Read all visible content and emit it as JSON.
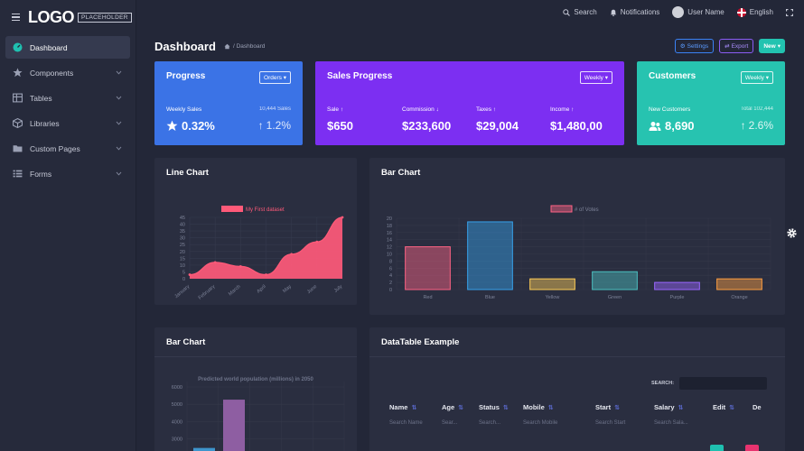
{
  "logo": {
    "text": "LOGO",
    "badge": "PLACEHOLDER"
  },
  "sidebar": {
    "items": [
      {
        "label": "Dashboard",
        "icon": "dashboard-icon",
        "active": true
      },
      {
        "label": "Components",
        "icon": "star-icon"
      },
      {
        "label": "Tables",
        "icon": "table-icon"
      },
      {
        "label": "Libraries",
        "icon": "cube-icon"
      },
      {
        "label": "Custom Pages",
        "icon": "folder-icon"
      },
      {
        "label": "Forms",
        "icon": "list-icon"
      }
    ]
  },
  "topbar": {
    "search": "Search",
    "notifications": "Notifications",
    "user": "User Name",
    "language": "English"
  },
  "header": {
    "title": "Dashboard",
    "breadcrumb": "/ Dashboard",
    "settings_label": "Settings",
    "export_label": "Export",
    "new_label": "New"
  },
  "cards": {
    "progress": {
      "title": "Progress",
      "dropdown": "Orders",
      "label": "Weekly Sales",
      "label_right": "10,444 Sales",
      "value": "0.32%",
      "value_right": "1.2%"
    },
    "sales": {
      "title": "Sales Progress",
      "dropdown": "Weekly",
      "items": [
        {
          "label": "Sale",
          "value": "$650"
        },
        {
          "label": "Commission",
          "value": "$233,600"
        },
        {
          "label": "Taxes",
          "value": "$29,004"
        },
        {
          "label": "Income",
          "value": "$1,480,00"
        }
      ]
    },
    "customers": {
      "title": "Customers",
      "dropdown": "Weekly",
      "label": "New Customers",
      "label_right": "Total 102,444",
      "value": "8,690",
      "value_right": "2.6%"
    }
  },
  "colors": {
    "blue": "#3b73e6",
    "purple": "#7c2ff2",
    "teal": "#27c3b0",
    "line": "#ff5a79"
  },
  "panels": {
    "line_chart": "Line Chart",
    "bar_chart": "Bar Chart",
    "bar_chart2": "Bar Chart",
    "datatable": "DataTable Example"
  },
  "chart_data": [
    {
      "type": "area",
      "title": "Line Chart",
      "legend": "My First dataset",
      "categories": [
        "January",
        "February",
        "March",
        "April",
        "May",
        "June",
        "July"
      ],
      "values": [
        3,
        12,
        9,
        3,
        18,
        27,
        45
      ],
      "yticks": [
        "45",
        "40",
        "35",
        "30",
        "25",
        "20",
        "15",
        "10",
        "5",
        "0"
      ],
      "ylim": [
        0,
        45
      ]
    },
    {
      "type": "bar",
      "title": "Bar Chart",
      "legend": "# of Votes",
      "categories": [
        "Red",
        "Blue",
        "Yellow",
        "Green",
        "Purple",
        "Orange"
      ],
      "values": [
        12,
        19,
        3,
        5,
        2,
        3
      ],
      "yticks": [
        "20",
        "18",
        "16",
        "14",
        "12",
        "10",
        "8",
        "6",
        "4",
        "2",
        "0"
      ],
      "ylim": [
        0,
        20
      ]
    },
    {
      "type": "bar",
      "title": "Predicted world population (millions) in 2050",
      "yticks": [
        "6000",
        "5000",
        "4000",
        "3000"
      ],
      "values": [
        2478,
        5267
      ]
    }
  ],
  "datatable": {
    "search_label": "SEARCH:",
    "columns": [
      "Name",
      "Age",
      "Status",
      "Mobile",
      "Start",
      "Salary",
      "Edit",
      "De"
    ],
    "filters": [
      "Search Name",
      "Sear...",
      "Search...",
      "Search Mobile",
      "Search Start",
      "Search Sala...",
      "",
      ""
    ]
  }
}
